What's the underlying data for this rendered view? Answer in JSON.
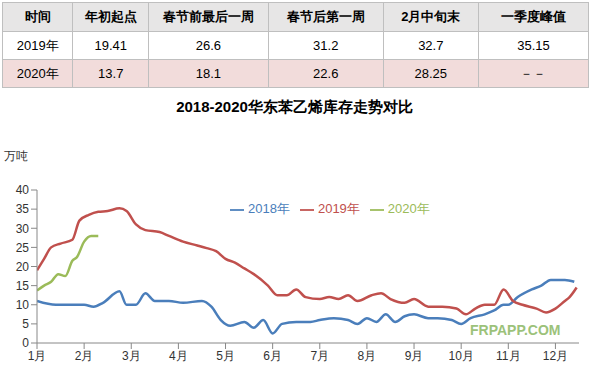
{
  "table": {
    "header": [
      "时间",
      "年初起点",
      "春节前最后一周",
      "春节后第一周",
      "2月中旬末",
      "一季度峰值"
    ],
    "rows": [
      [
        "2019年",
        19.41,
        26.6,
        31.2,
        32.7,
        35.15
      ],
      [
        "2020年",
        13.7,
        18.1,
        22.6,
        28.25,
        "－－"
      ]
    ]
  },
  "chart_data": {
    "type": "line",
    "title": "2018-2020华东苯乙烯库存走势对比",
    "y_label": "万吨",
    "xlim": [
      1,
      12.5
    ],
    "xticks": [
      {
        "value": 1,
        "label": "1月"
      },
      {
        "value": 2,
        "label": "2月"
      },
      {
        "value": 3,
        "label": "3月"
      },
      {
        "value": 4,
        "label": "4月"
      },
      {
        "value": 5,
        "label": "5月"
      },
      {
        "value": 6,
        "label": "6月"
      },
      {
        "value": 7,
        "label": "7月"
      },
      {
        "value": 8,
        "label": "8月"
      },
      {
        "value": 9,
        "label": "9月"
      },
      {
        "value": 10,
        "label": "10月"
      },
      {
        "value": 11,
        "label": "11月"
      },
      {
        "value": 12,
        "label": "12月"
      }
    ],
    "ylim": [
      0,
      40
    ],
    "yticks": [
      0,
      5,
      10,
      15,
      20,
      25,
      30,
      35,
      40
    ],
    "grid": false,
    "legend": "top-right",
    "annotations": [
      "FRPAPP.COM"
    ],
    "series": [
      {
        "name": "2018年",
        "color": "#4a7ebb",
        "x": [
          1,
          1.4,
          1.8,
          2.0,
          2.2,
          2.4,
          2.75,
          2.9,
          3.1,
          3.3,
          3.5,
          3.8,
          4.1,
          4.5,
          4.7,
          4.9,
          5.1,
          5.4,
          5.6,
          5.8,
          6.0,
          6.2,
          6.5,
          6.8,
          7.0,
          7.3,
          7.6,
          7.8,
          8.0,
          8.2,
          8.4,
          8.6,
          8.8,
          9.0,
          9.3,
          9.5,
          9.8,
          10.0,
          10.2,
          10.5,
          10.7,
          10.9,
          11.0,
          11.2,
          11.5,
          11.7,
          11.9,
          12.2,
          12.4
        ],
        "values": [
          11,
          10,
          10,
          10,
          9.5,
          10.5,
          13.5,
          10,
          10,
          13,
          11,
          11,
          10.5,
          11,
          9.5,
          6,
          4.5,
          5.5,
          4,
          6,
          2.5,
          5,
          5.5,
          5.5,
          6,
          6.5,
          6,
          5,
          6.5,
          5.5,
          7.5,
          5.5,
          7,
          7.5,
          6.5,
          6.5,
          6,
          5,
          6.5,
          7.5,
          8.5,
          10,
          10,
          12,
          14,
          15,
          16.5,
          16.5,
          16
        ]
      },
      {
        "name": "2019年",
        "color": "#c0504d",
        "x": [
          1,
          1.15,
          1.3,
          1.5,
          1.75,
          1.9,
          2.1,
          2.3,
          2.5,
          2.75,
          2.9,
          3.1,
          3.3,
          3.6,
          3.8,
          4.1,
          4.4,
          4.6,
          4.8,
          5.0,
          5.2,
          5.4,
          5.6,
          5.9,
          6.1,
          6.3,
          6.5,
          6.7,
          7.0,
          7.2,
          7.4,
          7.6,
          7.8,
          8.1,
          8.3,
          8.5,
          8.8,
          9.0,
          9.3,
          9.6,
          9.9,
          10.1,
          10.3,
          10.5,
          10.7,
          10.9,
          11.1,
          11.3,
          11.6,
          11.8,
          12.0,
          12.2,
          12.3,
          12.45
        ],
        "values": [
          19,
          22,
          25,
          26,
          27,
          32,
          33.5,
          34.3,
          34.5,
          35.2,
          34.5,
          31,
          29.5,
          29,
          28,
          26.5,
          25.5,
          24.8,
          24,
          22,
          21,
          19.5,
          18,
          15,
          12.5,
          12.5,
          14,
          12,
          11.5,
          12,
          11.5,
          12.5,
          11,
          12.5,
          13,
          11.5,
          10.5,
          11.5,
          9.5,
          9.5,
          9,
          7.5,
          9,
          10,
          10,
          14,
          11,
          10,
          9,
          8,
          9,
          11,
          12,
          14.5
        ]
      },
      {
        "name": "2020年",
        "color": "#9bbb59",
        "x": [
          1,
          1.15,
          1.3,
          1.45,
          1.6,
          1.75,
          1.85,
          2.0,
          2.15,
          2.3
        ],
        "values": [
          13.7,
          15,
          16,
          18,
          17.5,
          21.5,
          22.5,
          26.5,
          28,
          28
        ]
      }
    ]
  }
}
